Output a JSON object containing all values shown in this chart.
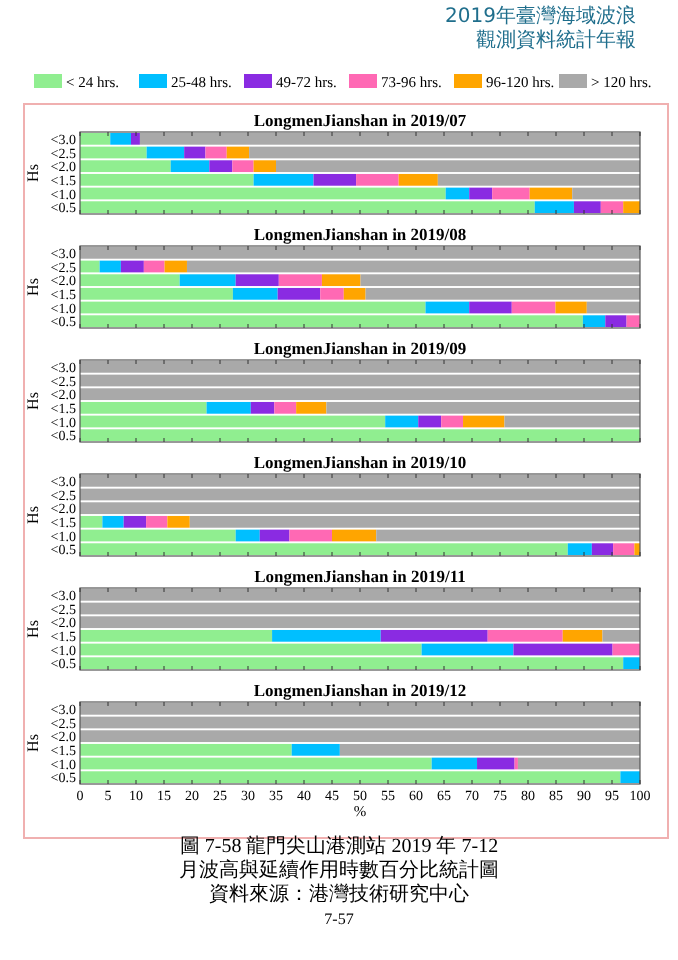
{
  "chart_data": [
    {
      "type": "bar",
      "orientation": "horizontal",
      "stacked": true,
      "title": "LongmenJianshan in 2019/07",
      "ylabel": "Hs",
      "categories": [
        "<3.0",
        "<2.5",
        "<2.0",
        "<1.5",
        "<1.0",
        "<0.5"
      ],
      "xlim": [
        0,
        100
      ],
      "xticks": [
        0,
        5,
        10,
        15,
        20,
        25,
        30,
        35,
        40,
        45,
        50,
        55,
        60,
        65,
        70,
        75,
        80,
        85,
        90,
        95,
        100
      ],
      "tick_labels": "y",
      "legend": "top",
      "annotations": [
        "2019年臺灣海域波浪",
        "觀測資料統計年報"
      ],
      "series": [
        {
          "name": "< 24 hrs.",
          "color": "#90ee90",
          "values": [
            5.4,
            11.9,
            16.2,
            31.0,
            65.3,
            81.2
          ]
        },
        {
          "name": "25-48 hrs.",
          "color": "#00bfff",
          "values": [
            3.7,
            6.7,
            6.9,
            10.7,
            4.2,
            7.0
          ]
        },
        {
          "name": "49-72 hrs.",
          "color": "#8a2be2",
          "values": [
            1.6,
            3.8,
            4.1,
            7.6,
            4.1,
            4.8
          ]
        },
        {
          "name": "73-96 hrs.",
          "color": "#ff69b4",
          "values": [
            0,
            3.8,
            3.8,
            7.6,
            6.7,
            4.0
          ]
        },
        {
          "name": "96-120 hrs.",
          "color": "#ffa500",
          "values": [
            0,
            4.0,
            4.0,
            7.0,
            7.6,
            3.0
          ]
        },
        {
          "name": "> 120 hrs.",
          "color": "#a9a9a9",
          "values": [
            89.3,
            69.8,
            65.0,
            36.1,
            12.1,
            0
          ]
        }
      ]
    },
    {
      "type": "bar",
      "orientation": "horizontal",
      "stacked": true,
      "title": "LongmenJianshan in 2019/08",
      "ylabel": "Hs",
      "categories": [
        "<3.0",
        "<2.5",
        "<2.0",
        "<1.5",
        "<1.0",
        "<0.5"
      ],
      "xlim": [
        0,
        100
      ],
      "xticks": [
        0,
        5,
        10,
        15,
        20,
        25,
        30,
        35,
        40,
        45,
        50,
        55,
        60,
        65,
        70,
        75,
        80,
        85,
        90,
        95,
        100
      ],
      "tick_labels": "y",
      "series": [
        {
          "color": "#90ee90",
          "values": [
            0,
            3.5,
            17.8,
            27.3,
            61.7,
            89.8
          ]
        },
        {
          "color": "#00bfff",
          "values": [
            0,
            3.8,
            10.0,
            8.0,
            7.8,
            4.0
          ]
        },
        {
          "color": "#8a2be2",
          "values": [
            0,
            4.1,
            7.7,
            7.6,
            7.6,
            3.8
          ]
        },
        {
          "color": "#ff69b4",
          "values": [
            0,
            3.7,
            7.7,
            4.2,
            7.8,
            2.4
          ]
        },
        {
          "color": "#ffa500",
          "values": [
            0,
            4.0,
            6.9,
            3.9,
            5.6,
            0
          ]
        },
        {
          "color": "#a9a9a9",
          "values": [
            100,
            80.9,
            49.9,
            49.0,
            9.5,
            0
          ]
        }
      ]
    },
    {
      "type": "bar",
      "orientation": "horizontal",
      "stacked": true,
      "title": "LongmenJianshan in 2019/09",
      "ylabel": "Hs",
      "categories": [
        "<3.0",
        "<2.5",
        "<2.0",
        "<1.5",
        "<1.0",
        "<0.5"
      ],
      "xlim": [
        0,
        100
      ],
      "xticks": [
        0,
        5,
        10,
        15,
        20,
        25,
        30,
        35,
        40,
        45,
        50,
        55,
        60,
        65,
        70,
        75,
        80,
        85,
        90,
        95,
        100
      ],
      "tick_labels": "y",
      "series": [
        {
          "color": "#90ee90",
          "values": [
            0,
            0,
            0,
            22.6,
            54.5,
            100
          ]
        },
        {
          "color": "#00bfff",
          "values": [
            0,
            0,
            0,
            7.9,
            5.9,
            0
          ]
        },
        {
          "color": "#8a2be2",
          "values": [
            0,
            0,
            0,
            4.2,
            4.1,
            0
          ]
        },
        {
          "color": "#ff69b4",
          "values": [
            0,
            0,
            0,
            3.9,
            3.9,
            0
          ]
        },
        {
          "color": "#ffa500",
          "values": [
            0,
            0,
            0,
            5.4,
            7.4,
            0
          ]
        },
        {
          "color": "#a9a9a9",
          "values": [
            100,
            100,
            100,
            56.0,
            24.2,
            0
          ]
        }
      ]
    },
    {
      "type": "bar",
      "orientation": "horizontal",
      "stacked": true,
      "title": "LongmenJianshan in 2019/10",
      "ylabel": "Hs",
      "categories": [
        "<3.0",
        "<2.5",
        "<2.0",
        "<1.5",
        "<1.0",
        "<0.5"
      ],
      "xlim": [
        0,
        100
      ],
      "xticks": [
        0,
        5,
        10,
        15,
        20,
        25,
        30,
        35,
        40,
        45,
        50,
        55,
        60,
        65,
        70,
        75,
        80,
        85,
        90,
        95,
        100
      ],
      "tick_labels": "y",
      "series": [
        {
          "color": "#90ee90",
          "values": [
            0,
            0,
            0,
            4.0,
            27.8,
            87.1
          ]
        },
        {
          "color": "#00bfff",
          "values": [
            0,
            0,
            0,
            3.8,
            4.3,
            4.3
          ]
        },
        {
          "color": "#8a2be2",
          "values": [
            0,
            0,
            0,
            4.0,
            5.3,
            3.8
          ]
        },
        {
          "color": "#ff69b4",
          "values": [
            0,
            0,
            0,
            3.8,
            7.6,
            3.8
          ]
        },
        {
          "color": "#ffa500",
          "values": [
            0,
            0,
            0,
            4.0,
            7.9,
            1.0
          ]
        },
        {
          "color": "#a9a9a9",
          "values": [
            100,
            100,
            100,
            80.4,
            47.1,
            0
          ]
        }
      ]
    },
    {
      "type": "bar",
      "orientation": "horizontal",
      "stacked": true,
      "title": "LongmenJianshan in 2019/11",
      "ylabel": "Hs",
      "categories": [
        "<3.0",
        "<2.5",
        "<2.0",
        "<1.5",
        "<1.0",
        "<0.5"
      ],
      "xlim": [
        0,
        100
      ],
      "xticks": [
        0,
        5,
        10,
        15,
        20,
        25,
        30,
        35,
        40,
        45,
        50,
        55,
        60,
        65,
        70,
        75,
        80,
        85,
        90,
        95,
        100
      ],
      "tick_labels": "y",
      "series": [
        {
          "color": "#90ee90",
          "values": [
            0,
            0,
            0,
            34.3,
            61.0,
            97.0
          ]
        },
        {
          "color": "#00bfff",
          "values": [
            0,
            0,
            0,
            19.4,
            16.4,
            3.0
          ]
        },
        {
          "color": "#8a2be2",
          "values": [
            0,
            0,
            0,
            19.1,
            17.7,
            0
          ]
        },
        {
          "color": "#ff69b4",
          "values": [
            0,
            0,
            0,
            13.4,
            4.9,
            0
          ]
        },
        {
          "color": "#ffa500",
          "values": [
            0,
            0,
            0,
            7.1,
            0,
            0
          ]
        },
        {
          "color": "#a9a9a9",
          "values": [
            100,
            100,
            100,
            6.7,
            0,
            0
          ]
        }
      ]
    },
    {
      "type": "bar",
      "orientation": "horizontal",
      "stacked": true,
      "title": "LongmenJianshan in 2019/12",
      "ylabel": "Hs",
      "xlabel": "%",
      "categories": [
        "<3.0",
        "<2.5",
        "<2.0",
        "<1.5",
        "<1.0",
        "<0.5"
      ],
      "xlim": [
        0,
        100
      ],
      "xticks": [
        0,
        5,
        10,
        15,
        20,
        25,
        30,
        35,
        40,
        45,
        50,
        55,
        60,
        65,
        70,
        75,
        80,
        85,
        90,
        95,
        100
      ],
      "annotations": [
        "圖 7-58 龍門尖山港測站 2019 年 7-12 月波高與延續作用時數百分比統計圖",
        "資料來源：港灣技術研究中心",
        "7-57"
      ],
      "series": [
        {
          "color": "#90ee90",
          "values": [
            0,
            0,
            0,
            37.8,
            62.8,
            96.5
          ]
        },
        {
          "color": "#00bfff",
          "values": [
            0,
            0,
            0,
            8.6,
            8.1,
            3.5
          ]
        },
        {
          "color": "#8a2be2",
          "values": [
            0,
            0,
            0,
            0,
            6.7,
            0
          ]
        },
        {
          "color": "#ff69b4",
          "values": [
            0,
            0,
            0,
            0,
            0.6,
            0
          ]
        },
        {
          "color": "#ffa500",
          "values": [
            0,
            0,
            0,
            0,
            0,
            0
          ]
        },
        {
          "color": "#a9a9a9",
          "values": [
            100,
            100,
            100,
            53.6,
            21.8,
            0
          ]
        }
      ]
    }
  ]
}
